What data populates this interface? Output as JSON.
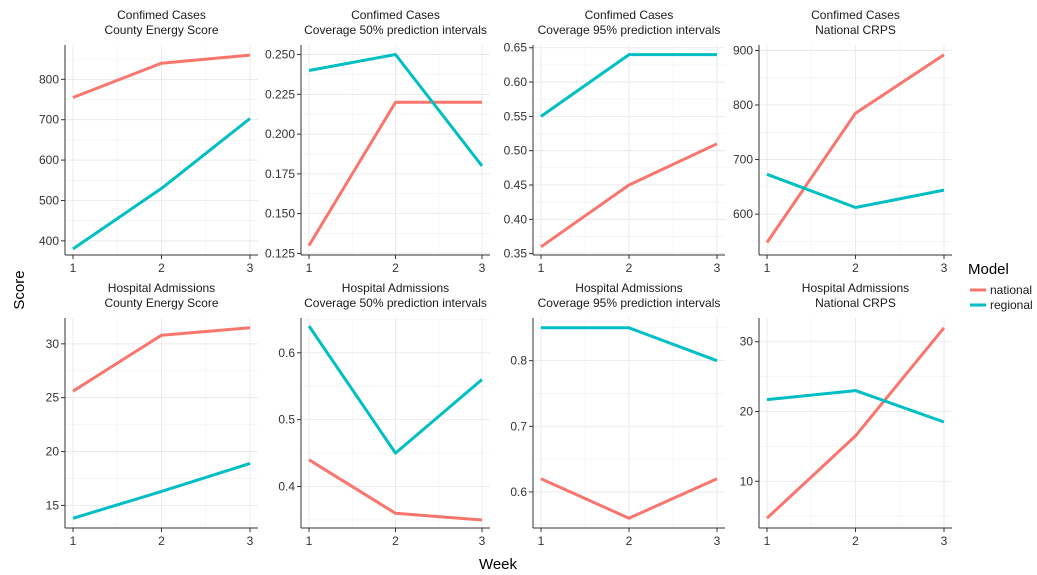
{
  "figure": {
    "xlabel": "Week",
    "ylabel": "Score"
  },
  "legend": {
    "title": "Model",
    "items": [
      {
        "label": "national",
        "color": "#F8766D"
      },
      {
        "label": "regional",
        "color": "#00BFC4"
      }
    ]
  },
  "chart_data": [
    {
      "type": "line",
      "title": "Confimed Cases",
      "subtitle": "County Energy Score",
      "x": [
        1,
        2,
        3
      ],
      "ylim": [
        365,
        885
      ],
      "yticks": [
        400,
        500,
        600,
        700,
        800
      ],
      "series": [
        {
          "name": "national",
          "values": [
            755,
            840,
            860
          ]
        },
        {
          "name": "regional",
          "values": [
            380,
            530,
            703
          ]
        }
      ]
    },
    {
      "type": "line",
      "title": "Confimed Cases",
      "subtitle": "Coverage 50% prediction intervals",
      "x": [
        1,
        2,
        3
      ],
      "ylim": [
        0.124,
        0.256
      ],
      "yticks": [
        "0.125",
        "0.150",
        "0.175",
        "0.200",
        "0.225",
        "0.250"
      ],
      "series": [
        {
          "name": "national",
          "values": [
            0.13,
            0.22,
            0.22
          ]
        },
        {
          "name": "regional",
          "values": [
            0.24,
            0.25,
            0.18
          ]
        }
      ]
    },
    {
      "type": "line",
      "title": "Confimed Cases",
      "subtitle": "Coverage 95% prediction intervals",
      "x": [
        1,
        2,
        3
      ],
      "ylim": [
        0.348,
        0.654
      ],
      "yticks": [
        "0.35",
        "0.40",
        "0.45",
        "0.50",
        "0.55",
        "0.60",
        "0.65"
      ],
      "series": [
        {
          "name": "national",
          "values": [
            0.36,
            0.45,
            0.51
          ]
        },
        {
          "name": "regional",
          "values": [
            0.55,
            0.64,
            0.64
          ]
        }
      ]
    },
    {
      "type": "line",
      "title": "Confimed Cases",
      "subtitle": "National CRPS",
      "x": [
        1,
        2,
        3
      ],
      "ylim": [
        525,
        910
      ],
      "yticks": [
        600,
        700,
        800,
        900
      ],
      "series": [
        {
          "name": "national",
          "values": [
            548,
            785,
            892
          ]
        },
        {
          "name": "regional",
          "values": [
            673,
            612,
            644
          ]
        }
      ]
    },
    {
      "type": "line",
      "title": "Hospital Admissions",
      "subtitle": "County Energy Score",
      "x": [
        1,
        2,
        3
      ],
      "ylim": [
        12.9,
        32.4
      ],
      "yticks": [
        15,
        20,
        25,
        30
      ],
      "series": [
        {
          "name": "national",
          "values": [
            25.6,
            30.8,
            31.5
          ]
        },
        {
          "name": "regional",
          "values": [
            13.8,
            16.3,
            18.9
          ]
        }
      ]
    },
    {
      "type": "line",
      "title": "Hospital Admissions",
      "subtitle": "Coverage 50% prediction intervals",
      "x": [
        1,
        2,
        3
      ],
      "ylim": [
        0.338,
        0.652
      ],
      "yticks": [
        "0.4",
        "0.5",
        "0.6"
      ],
      "series": [
        {
          "name": "national",
          "values": [
            0.44,
            0.36,
            0.35
          ]
        },
        {
          "name": "regional",
          "values": [
            0.64,
            0.45,
            0.56
          ]
        }
      ]
    },
    {
      "type": "line",
      "title": "Hospital Admissions",
      "subtitle": "Coverage 95% prediction intervals",
      "x": [
        1,
        2,
        3
      ],
      "ylim": [
        0.545,
        0.865
      ],
      "yticks": [
        "0.6",
        "0.7",
        "0.8"
      ],
      "series": [
        {
          "name": "national",
          "values": [
            0.62,
            0.56,
            0.62
          ]
        },
        {
          "name": "regional",
          "values": [
            0.85,
            0.85,
            0.8
          ]
        }
      ]
    },
    {
      "type": "line",
      "title": "Hospital Admissions",
      "subtitle": "National CRPS",
      "x": [
        1,
        2,
        3
      ],
      "ylim": [
        3.3,
        33.4
      ],
      "yticks": [
        10,
        20,
        30
      ],
      "series": [
        {
          "name": "national",
          "values": [
            4.7,
            16.5,
            32.0
          ]
        },
        {
          "name": "regional",
          "values": [
            21.7,
            23.0,
            18.5
          ]
        }
      ]
    }
  ]
}
